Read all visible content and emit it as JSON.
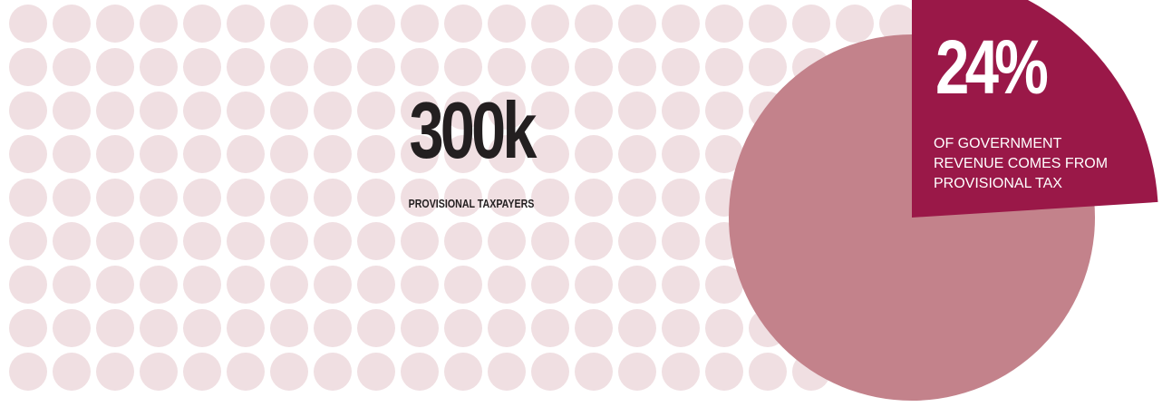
{
  "colors": {
    "dot": "#f0dfe2",
    "pie_main": "#c3828b",
    "pie_highlight": "#9a1848",
    "text_dark": "#231f20",
    "text_light": "#ffffff"
  },
  "headline": {
    "value": "300k",
    "caption": "PROVISIONAL TAXPAYERS"
  },
  "stat": {
    "value": "24%",
    "caption_lines": [
      "OF GOVERNMENT",
      "REVENUE COMES FROM",
      "PROVISIONAL TAX"
    ]
  },
  "chart_data": {
    "type": "pie",
    "title": "",
    "slices": [
      {
        "label": "OF GOVERNMENT REVENUE COMES FROM PROVISIONAL TAX",
        "value": 24,
        "color": "#9a1848"
      },
      {
        "label": "",
        "value": 76,
        "color": "#c3828b"
      }
    ]
  }
}
